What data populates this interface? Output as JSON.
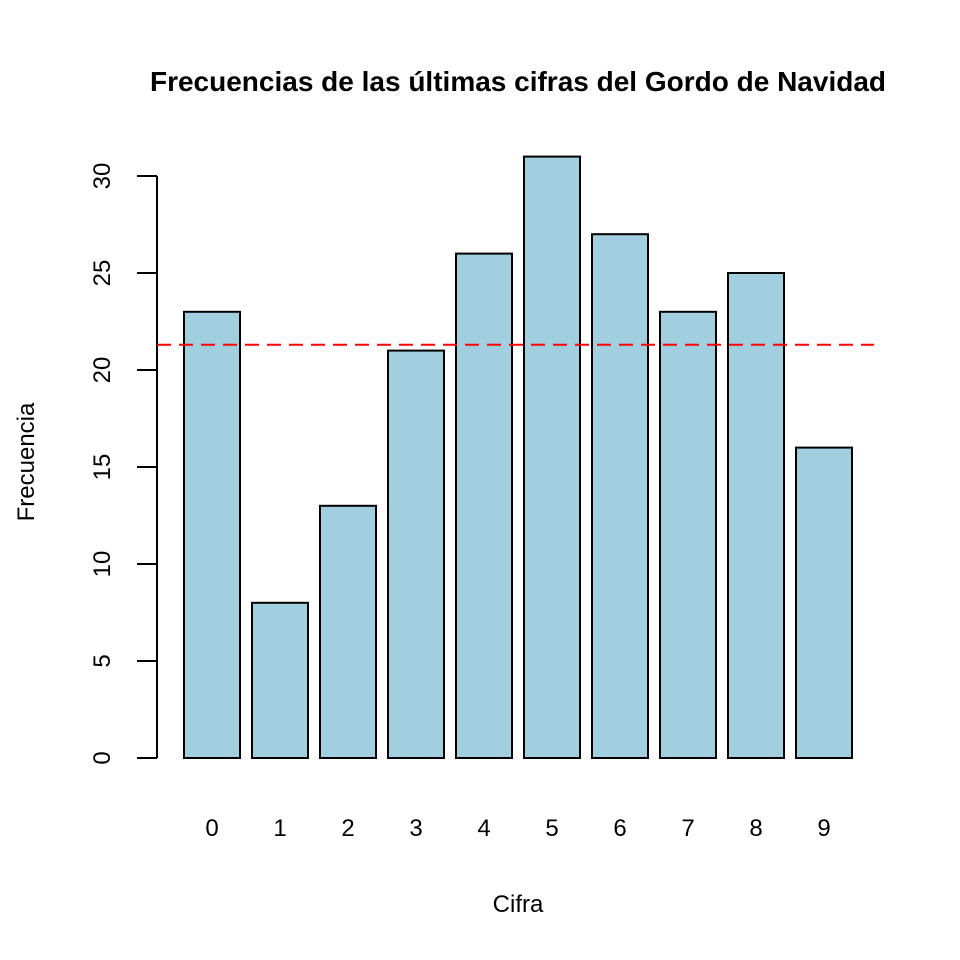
{
  "chart_data": {
    "type": "bar",
    "title": "Frecuencias de las últimas cifras del Gordo de Navidad",
    "xlabel": "Cifra",
    "ylabel": "Frecuencia",
    "categories": [
      "0",
      "1",
      "2",
      "3",
      "4",
      "5",
      "6",
      "7",
      "8",
      "9"
    ],
    "values": [
      23,
      8,
      13,
      21,
      26,
      31,
      27,
      23,
      25,
      16
    ],
    "ylim": [
      0,
      31
    ],
    "yticks": [
      "0",
      "5",
      "10",
      "15",
      "20",
      "25",
      "30"
    ],
    "reference_line": {
      "y": 21.3,
      "style": "dashed",
      "color": "#ff0000"
    },
    "bar_color": "#a1cfe0",
    "grid": false,
    "legend": "none"
  }
}
